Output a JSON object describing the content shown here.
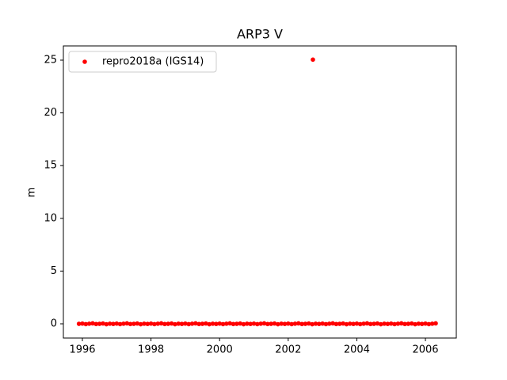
{
  "chart_data": {
    "type": "scatter",
    "title": "ARP3 V",
    "y_label": "m",
    "legend_position": "upper left",
    "xlim": [
      1995.446,
      2006.9
    ],
    "xticks": [
      1996,
      1998,
      2000,
      2002,
      2004,
      2006
    ],
    "ylim": [
      -1.35,
      26.35
    ],
    "yticks": [
      0,
      5,
      10,
      15,
      20,
      25
    ],
    "series": [
      {
        "name": "repro2018a (IGS14)",
        "color": "#ff0000",
        "x": [
          1995.9,
          1996.0,
          1996.1,
          1996.2,
          1996.3,
          1996.4,
          1996.5,
          1996.6,
          1996.7,
          1996.8,
          1996.9,
          1997.0,
          1997.1,
          1997.2,
          1997.3,
          1997.4,
          1997.5,
          1997.6,
          1997.7,
          1997.8,
          1997.9,
          1998.0,
          1998.1,
          1998.2,
          1998.3,
          1998.4,
          1998.5,
          1998.6,
          1998.7,
          1998.8,
          1998.9,
          1999.0,
          1999.1,
          1999.2,
          1999.3,
          1999.4,
          1999.5,
          1999.6,
          1999.7,
          1999.8,
          1999.9,
          2000.0,
          2000.1,
          2000.2,
          2000.3,
          2000.4,
          2000.5,
          2000.6,
          2000.7,
          2000.8,
          2000.9,
          2001.0,
          2001.1,
          2001.2,
          2001.3,
          2001.4,
          2001.5,
          2001.6,
          2001.7,
          2001.8,
          2001.9,
          2002.0,
          2002.1,
          2002.2,
          2002.3,
          2002.4,
          2002.5,
          2002.6,
          2002.7,
          2002.8,
          2002.9,
          2003.0,
          2003.1,
          2003.2,
          2003.3,
          2003.4,
          2003.5,
          2003.6,
          2003.7,
          2003.8,
          2003.9,
          2004.0,
          2004.1,
          2004.2,
          2004.3,
          2004.4,
          2004.5,
          2004.6,
          2004.7,
          2004.8,
          2004.9,
          2005.0,
          2005.1,
          2005.2,
          2005.3,
          2005.4,
          2005.5,
          2005.6,
          2005.7,
          2005.8,
          2005.9,
          2006.0,
          2006.1,
          2006.2,
          2006.3,
          2002.72
        ],
        "values": [
          0.0,
          0.02,
          -0.03,
          0.01,
          0.04,
          -0.02,
          0.0,
          0.03,
          -0.04,
          0.01,
          -0.01,
          0.02,
          -0.03,
          0.01,
          0.04,
          -0.02,
          0.0,
          0.03,
          -0.04,
          0.01,
          -0.01,
          0.02,
          -0.03,
          0.01,
          0.04,
          -0.02,
          0.0,
          0.03,
          -0.04,
          0.01,
          -0.01,
          0.02,
          -0.03,
          0.01,
          0.04,
          -0.02,
          0.0,
          0.03,
          -0.04,
          0.01,
          -0.01,
          0.02,
          -0.03,
          0.01,
          0.04,
          -0.02,
          0.0,
          0.03,
          -0.04,
          0.01,
          -0.01,
          0.02,
          -0.03,
          0.01,
          0.04,
          -0.02,
          0.0,
          0.03,
          -0.04,
          0.01,
          -0.01,
          0.02,
          -0.03,
          0.01,
          0.04,
          -0.02,
          0.0,
          0.03,
          -0.04,
          0.01,
          -0.01,
          0.02,
          -0.03,
          0.01,
          0.04,
          -0.02,
          0.0,
          0.03,
          -0.04,
          0.01,
          -0.01,
          0.02,
          -0.03,
          0.01,
          0.04,
          -0.02,
          0.0,
          0.03,
          -0.04,
          0.01,
          -0.01,
          0.02,
          -0.03,
          0.01,
          0.04,
          -0.02,
          0.0,
          0.03,
          -0.04,
          0.01,
          -0.01,
          0.02,
          -0.03,
          0.01,
          0.04,
          25.05
        ]
      }
    ]
  }
}
